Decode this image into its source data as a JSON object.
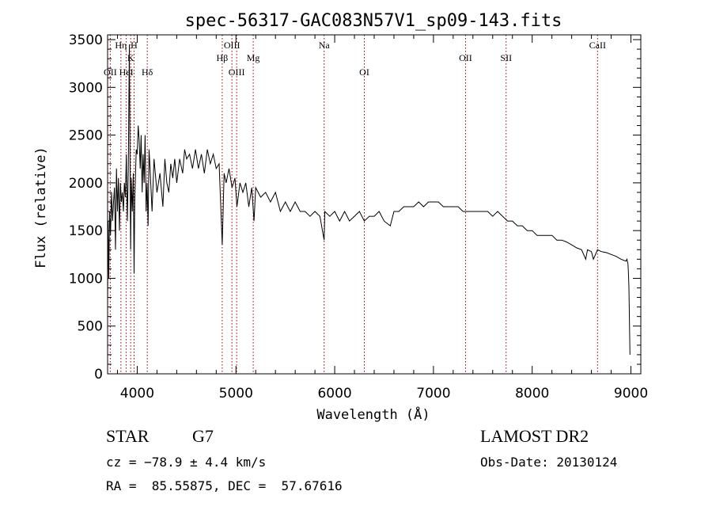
{
  "chart_data": {
    "type": "line",
    "title": "spec-56317-GAC083N57V1_sp09-143.fits",
    "xlabel": "Wavelength (Å)",
    "ylabel": "Flux (relative)",
    "xlim": [
      3700,
      9100
    ],
    "ylim": [
      0,
      3550
    ],
    "xticks": [
      4000,
      5000,
      6000,
      7000,
      8000,
      9000
    ],
    "yticks": [
      0,
      500,
      1000,
      1500,
      2000,
      2500,
      3000,
      3500
    ],
    "grid": false,
    "line_color": "#000000",
    "marker_color": "#990000",
    "series": [
      {
        "x": [
          3700,
          3705,
          3712,
          3720,
          3730,
          3740,
          3750,
          3760,
          3770,
          3780,
          3790,
          3800,
          3810,
          3820,
          3830,
          3840,
          3850,
          3860,
          3870,
          3880,
          3890,
          3900,
          3910,
          3920,
          3925,
          3933,
          3940,
          3950,
          3960,
          3968,
          3975,
          3990,
          4000,
          4010,
          4020,
          4030,
          4040,
          4050,
          4060,
          4070,
          4080,
          4090,
          4100,
          4110,
          4120,
          4130,
          4150,
          4170,
          4200,
          4230,
          4260,
          4280,
          4300,
          4320,
          4340,
          4360,
          4380,
          4400,
          4430,
          4460,
          4480,
          4500,
          4530,
          4560,
          4590,
          4620,
          4650,
          4680,
          4710,
          4740,
          4770,
          4800,
          4830,
          4861,
          4880,
          4900,
          4930,
          4960,
          4990,
          5010,
          5040,
          5070,
          5100,
          5130,
          5160,
          5183,
          5200,
          5250,
          5300,
          5350,
          5400,
          5450,
          5500,
          5550,
          5600,
          5650,
          5700,
          5750,
          5800,
          5850,
          5893,
          5900,
          5950,
          6000,
          6050,
          6100,
          6150,
          6200,
          6250,
          6300,
          6350,
          6400,
          6450,
          6500,
          6563,
          6600,
          6650,
          6700,
          6750,
          6800,
          6850,
          6900,
          6950,
          7000,
          7050,
          7100,
          7150,
          7200,
          7250,
          7300,
          7350,
          7400,
          7450,
          7500,
          7550,
          7600,
          7650,
          7700,
          7750,
          7800,
          7850,
          7900,
          7950,
          8000,
          8050,
          8100,
          8150,
          8200,
          8250,
          8300,
          8350,
          8400,
          8450,
          8500,
          8542,
          8560,
          8600,
          8620,
          8662,
          8700,
          8750,
          8800,
          8850,
          8900,
          8950,
          8960,
          8970,
          8975,
          8980,
          8990
        ],
        "y": [
          700,
          1600,
          1000,
          1700,
          1450,
          1900,
          1600,
          1800,
          1950,
          1300,
          2150,
          1700,
          2050,
          1500,
          2000,
          1800,
          1900,
          1700,
          2000,
          1850,
          2300,
          1600,
          2150,
          3450,
          2600,
          1300,
          2050,
          1700,
          2100,
          1050,
          1800,
          2350,
          2300,
          2600,
          2450,
          2150,
          2500,
          1900,
          2300,
          2000,
          2500,
          1700,
          2000,
          1550,
          2350,
          2150,
          1700,
          2250,
          1900,
          2100,
          1750,
          2250,
          2000,
          1900,
          2200,
          2050,
          2250,
          2000,
          2250,
          2100,
          2350,
          2250,
          2300,
          2150,
          2350,
          2150,
          2300,
          2100,
          2350,
          2200,
          2300,
          2150,
          2200,
          1350,
          2100,
          2000,
          2150,
          1950,
          2050,
          1750,
          2000,
          1900,
          2000,
          1750,
          1950,
          1600,
          1950,
          1850,
          1900,
          1800,
          1900,
          1700,
          1800,
          1700,
          1800,
          1700,
          1700,
          1650,
          1700,
          1650,
          1400,
          1700,
          1650,
          1700,
          1600,
          1700,
          1600,
          1650,
          1700,
          1600,
          1650,
          1650,
          1700,
          1600,
          1550,
          1700,
          1700,
          1750,
          1750,
          1750,
          1800,
          1750,
          1800,
          1800,
          1800,
          1750,
          1750,
          1750,
          1750,
          1700,
          1700,
          1700,
          1700,
          1700,
          1700,
          1650,
          1700,
          1650,
          1600,
          1600,
          1550,
          1550,
          1500,
          1500,
          1450,
          1450,
          1450,
          1450,
          1400,
          1400,
          1380,
          1350,
          1320,
          1300,
          1200,
          1300,
          1280,
          1200,
          1300,
          1280,
          1270,
          1250,
          1230,
          1200,
          1180,
          1200,
          1150,
          1050,
          900,
          200
        ]
      }
    ],
    "spectral_lines": [
      {
        "label": "Hη",
        "x": 3835,
        "row": 1
      },
      {
        "label": "OII",
        "x": 3727,
        "row": 3
      },
      {
        "label": "HeI",
        "x": 3889,
        "row": 3
      },
      {
        "label": "H",
        "x": 3968,
        "row": 1
      },
      {
        "label": "K",
        "x": 3934,
        "row": 2
      },
      {
        "label": "Hδ",
        "x": 4102,
        "row": 3
      },
      {
        "label": "Hβ",
        "x": 4861,
        "row": 2
      },
      {
        "label": "OIII",
        "x": 4959,
        "row": 1
      },
      {
        "label": "OIII",
        "x": 5007,
        "row": 3
      },
      {
        "label": "Mg",
        "x": 5175,
        "row": 2
      },
      {
        "label": "Na",
        "x": 5893,
        "row": 1
      },
      {
        "label": "OI",
        "x": 6300,
        "row": 3
      },
      {
        "label": "OII",
        "x": 7325,
        "row": 2
      },
      {
        "label": "SII",
        "x": 7736,
        "row": 2
      },
      {
        "label": "CaII",
        "x": 8662,
        "row": 1
      }
    ]
  },
  "info": {
    "class_label": "STAR",
    "subclass": "G7",
    "survey": "LAMOST DR2",
    "velocity": "cz = −78.9 ± 4.4 km/s",
    "obs_date": "Obs-Date: 20130124",
    "coords": "RA =  85.55875, DEC =  57.67616"
  }
}
